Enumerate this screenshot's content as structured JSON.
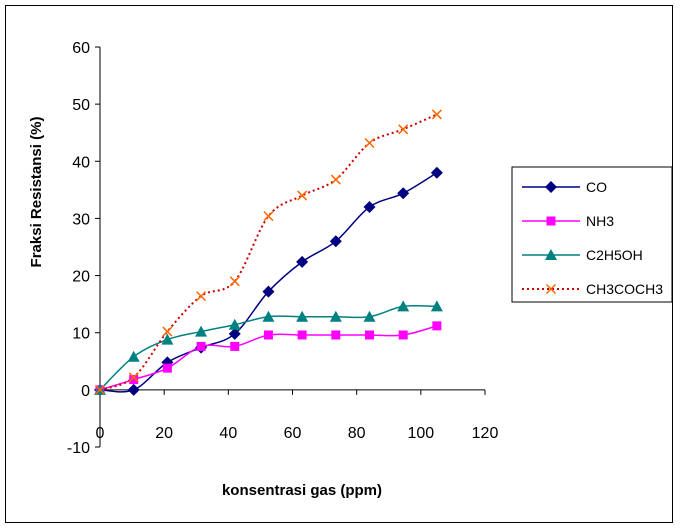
{
  "chart_data": {
    "type": "line",
    "title": "",
    "xlabel": "konsentrasi gas (ppm)",
    "ylabel": "Fraksi Resistansi (%)",
    "xlim": [
      0,
      120
    ],
    "ylim": [
      -10,
      60
    ],
    "xticks": [
      "0",
      "20",
      "40",
      "60",
      "80",
      "100",
      "120"
    ],
    "yticks": [
      "-10",
      "0",
      "10",
      "20",
      "30",
      "40",
      "50",
      "60"
    ],
    "grid": false,
    "legend": "right",
    "series": [
      {
        "name": "CO",
        "color": "#000080",
        "marker": "diamond",
        "dash": "solid",
        "x": [
          0,
          10.5,
          21,
          31.5,
          42,
          52.5,
          63,
          73.5,
          84,
          94.5,
          105
        ],
        "y": [
          0,
          0,
          4.8,
          7.4,
          9.8,
          17.2,
          22.4,
          26,
          32,
          34.4,
          38
        ]
      },
      {
        "name": "NH3",
        "color": "#FF00FF",
        "marker": "square",
        "dash": "solid",
        "x": [
          0,
          10.5,
          21,
          31.5,
          42,
          52.5,
          63,
          73.5,
          84,
          94.5,
          105
        ],
        "y": [
          0,
          1.8,
          3.8,
          7.6,
          7.6,
          9.6,
          9.6,
          9.6,
          9.6,
          9.6,
          11.2
        ]
      },
      {
        "name": "C2H5OH",
        "color": "#008080",
        "marker": "triangle",
        "dash": "solid",
        "x": [
          0,
          10.5,
          21,
          31.5,
          42,
          52.5,
          63,
          73.5,
          84,
          94.5,
          105
        ],
        "y": [
          0,
          5.8,
          8.8,
          10.2,
          11.4,
          12.8,
          12.8,
          12.8,
          12.8,
          14.6,
          14.6
        ]
      },
      {
        "name": "CH3COCH3",
        "color": "#FF6600",
        "line_color": "#CC0000",
        "marker": "x",
        "dash": "dotted",
        "x": [
          0,
          10.5,
          21,
          31.5,
          42,
          52.5,
          63,
          73.5,
          84,
          94.5,
          105
        ],
        "y": [
          0,
          2.2,
          10.2,
          16.4,
          19,
          30.4,
          34,
          36.8,
          43.2,
          45.6,
          48.2
        ]
      }
    ]
  }
}
